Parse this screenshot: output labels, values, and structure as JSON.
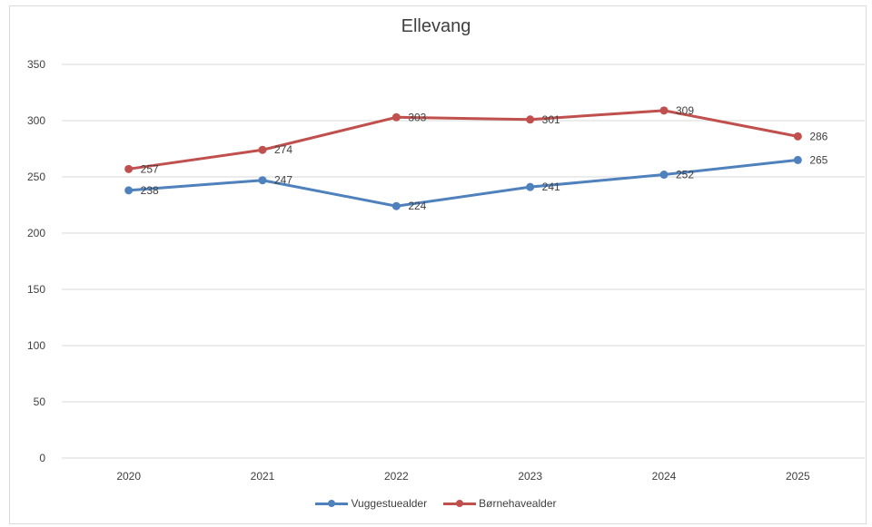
{
  "chart_data": {
    "type": "line",
    "title": "Ellevang",
    "categories": [
      "2020",
      "2021",
      "2022",
      "2023",
      "2024",
      "2025"
    ],
    "ylim": [
      0,
      350
    ],
    "yticks": [
      0,
      50,
      100,
      150,
      200,
      250,
      300,
      350
    ],
    "grid": true,
    "legend_position": "bottom",
    "series": [
      {
        "name": "Vuggestuealder",
        "color": "#4f81bd",
        "values": [
          238,
          247,
          224,
          241,
          252,
          265
        ]
      },
      {
        "name": "Børnehavealder",
        "color": "#c0504d",
        "values": [
          257,
          274,
          303,
          301,
          309,
          286
        ]
      }
    ]
  }
}
